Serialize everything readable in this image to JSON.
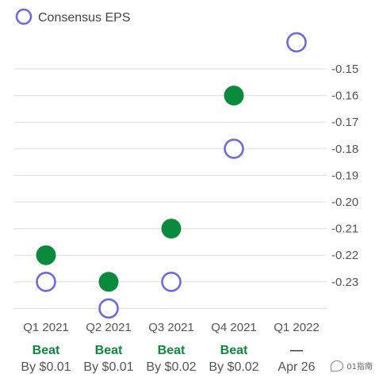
{
  "chart_data": {
    "type": "scatter",
    "legend": {
      "label": "Consensus EPS",
      "placement": "top-left"
    },
    "categories": [
      "Q1 2021",
      "Q2 2021",
      "Q3 2021",
      "Q4 2021",
      "Q1 2022"
    ],
    "series": [
      {
        "name": "Consensus EPS",
        "style": "hollow-circle",
        "color": "#6b6be0",
        "values": [
          -0.23,
          -0.24,
          -0.23,
          -0.18,
          -0.14
        ]
      },
      {
        "style": "filled-circle",
        "color": "#0a8a3c",
        "values": [
          -0.22,
          -0.23,
          -0.21,
          -0.16,
          null
        ]
      }
    ],
    "yticks": [
      -0.15,
      -0.16,
      -0.17,
      -0.18,
      -0.19,
      -0.2,
      -0.21,
      -0.22,
      -0.23
    ],
    "ytick_labels": [
      "-0.15",
      "-0.16",
      "-0.17",
      "-0.18",
      "-0.19",
      "-0.20",
      "-0.21",
      "-0.22",
      "-0.23"
    ],
    "ylim": [
      -0.24,
      -0.14
    ],
    "grid": true,
    "y_axis_side": "right",
    "results": [
      {
        "label": "Beat",
        "detail": "By $0.01"
      },
      {
        "label": "Beat",
        "detail": "By $0.01"
      },
      {
        "label": "Beat",
        "detail": "By $0.02"
      },
      {
        "label": "Beat",
        "detail": "By $0.02"
      },
      {
        "label": "—",
        "detail": "Apr 26"
      }
    ],
    "colors": {
      "beat": "#0a8a3c",
      "pending": "#444444",
      "estimate": "#6b6be0",
      "grid": "#e3e3e3"
    }
  },
  "watermark": {
    "text": "01指南",
    "icon": "wechat-icon"
  }
}
